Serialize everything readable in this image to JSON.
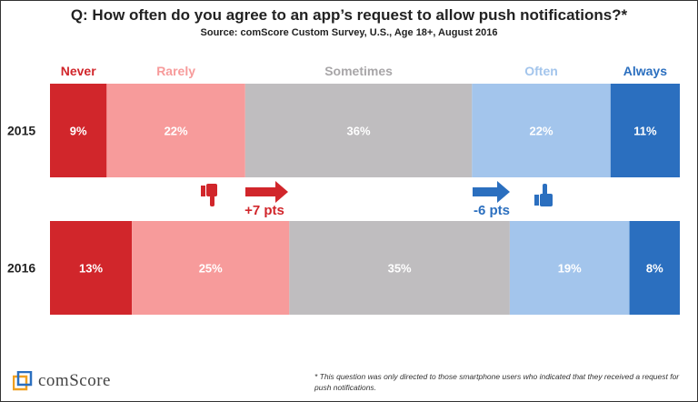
{
  "header": {
    "title": "Q: How often do you agree to an app’s request to allow push notifications?*",
    "subtitle": "Source: comScore Custom Survey, U.S., Age 18+, August 2016"
  },
  "chart_data": {
    "type": "bar",
    "orientation": "horizontal-stacked-100",
    "categories": [
      "2015",
      "2016"
    ],
    "series": [
      {
        "name": "Never",
        "values": [
          9,
          13
        ],
        "color": "#d1262b",
        "label_color": "#d1262b"
      },
      {
        "name": "Rarely",
        "values": [
          22,
          25
        ],
        "color": "#f79b9b",
        "label_color": "#f79b9b"
      },
      {
        "name": "Sometimes",
        "values": [
          36,
          35
        ],
        "color": "#bfbdbf",
        "label_color": "#a8a6a8"
      },
      {
        "name": "Often",
        "values": [
          22,
          19
        ],
        "color": "#a3c5ec",
        "label_color": "#a3c5ec"
      },
      {
        "name": "Always",
        "values": [
          11,
          8
        ],
        "color": "#2b6fbf",
        "label_color": "#2b6fbf"
      }
    ],
    "value_suffix": "%",
    "legend": "top",
    "annotations": [
      {
        "text": "+7 pts",
        "color": "#d1262b",
        "icon": "thumbs-down-icon"
      },
      {
        "text": "-6 pts",
        "color": "#2b6fbf",
        "icon": "thumbs-up-icon"
      }
    ]
  },
  "footer": {
    "brand": "comScore",
    "footnote": "* This question was only directed to those smartphone users who indicated that they received a request for push notifications."
  }
}
